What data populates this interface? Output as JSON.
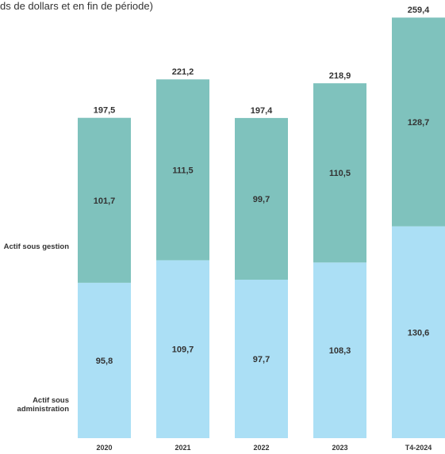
{
  "subtitle": "ds de dollars et en fin de période)",
  "series_labels": {
    "aum": "Actif sous gestion",
    "aua": "Actif sous administration"
  },
  "colors": {
    "aum": "#7fc2bd",
    "aua": "#abdff5",
    "text": "#333333"
  },
  "chart_data": {
    "type": "bar",
    "stacked": true,
    "categories": [
      "2020",
      "2021",
      "2022",
      "2023",
      "T4-2024"
    ],
    "series": [
      {
        "name": "Actif sous administration",
        "values": [
          95.8,
          109.7,
          97.7,
          108.3,
          130.6
        ],
        "labels": [
          "95,8",
          "109,7",
          "97,7",
          "108,3",
          "130,6"
        ]
      },
      {
        "name": "Actif sous gestion",
        "values": [
          101.7,
          111.5,
          99.7,
          110.5,
          128.7
        ],
        "labels": [
          "101,7",
          "111,5",
          "99,7",
          "110,5",
          "128,7"
        ]
      }
    ],
    "totals": [
      197.5,
      221.2,
      197.4,
      218.9,
      259.4
    ],
    "total_labels": [
      "197,5",
      "221,2",
      "197,4",
      "218,9",
      "259,4"
    ],
    "ylim": [
      0,
      259.4
    ]
  }
}
